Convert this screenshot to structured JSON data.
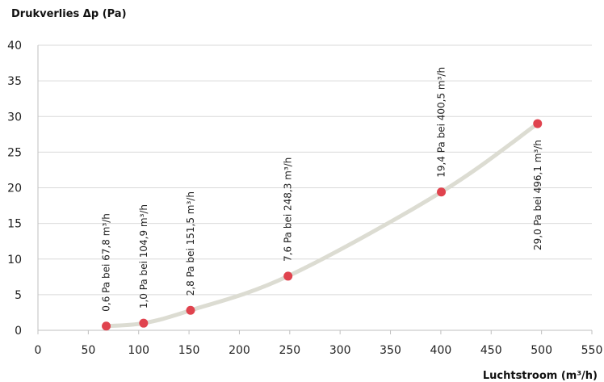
{
  "chart_data": {
    "type": "scatter",
    "ylabel": "Drukverlies Δp (Pa)",
    "xlabel": "Luchtstroom (m³/h)",
    "xlim": [
      0,
      550
    ],
    "ylim": [
      0,
      40
    ],
    "x_ticks": [
      0,
      50,
      100,
      150,
      200,
      250,
      300,
      350,
      400,
      450,
      500,
      550
    ],
    "y_ticks": [
      0,
      5,
      10,
      15,
      20,
      25,
      30,
      35,
      40
    ],
    "grid": true,
    "curve_color": "#dcdcd2",
    "point_color": "#e0434e",
    "points": [
      {
        "x": 67.8,
        "y": 0.6,
        "label": "0,6 Pa bei 67,8 m³/h"
      },
      {
        "x": 104.9,
        "y": 1.0,
        "label": "1,0 Pa bei 104,9 m³/h"
      },
      {
        "x": 151.5,
        "y": 2.8,
        "label": "2,8 Pa bei 151,5 m³/h"
      },
      {
        "x": 248.3,
        "y": 7.6,
        "label": "7,6 Pa bei 248,3 m³/h"
      },
      {
        "x": 400.5,
        "y": 19.4,
        "label": "19,4 Pa bei 400,5 m³/h"
      },
      {
        "x": 496.1,
        "y": 29.0,
        "label": "29,0 Pa bei 496,1 m³/h"
      }
    ]
  }
}
